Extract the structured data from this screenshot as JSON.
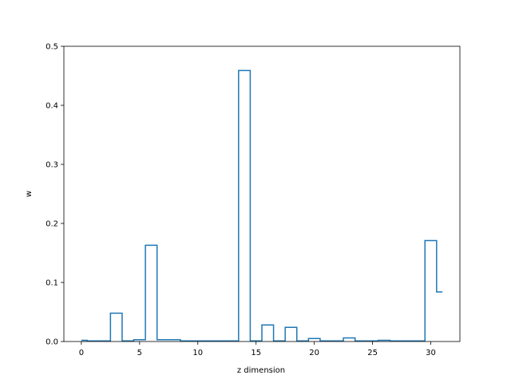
{
  "chart_data": {
    "type": "step",
    "title": "",
    "xlabel": "z dimension",
    "ylabel": "w",
    "xlim": [
      -1.5,
      32.5
    ],
    "ylim": [
      0,
      0.5
    ],
    "xticks": [
      0,
      5,
      10,
      15,
      20,
      25,
      30
    ],
    "yticks": [
      0.0,
      0.1,
      0.2,
      0.3,
      0.4,
      0.5
    ],
    "xtick_labels": [
      "0",
      "5",
      "10",
      "15",
      "20",
      "25",
      "30"
    ],
    "ytick_labels": [
      "0.0",
      "0.1",
      "0.2",
      "0.3",
      "0.4",
      "0.5"
    ],
    "step_where": "mid",
    "color": "#1f77b4",
    "grid": false,
    "series": [
      {
        "x": [
          0,
          1,
          2,
          3,
          4,
          5,
          6,
          7,
          8,
          9,
          10,
          11,
          12,
          13,
          14,
          15,
          16,
          17,
          18,
          19,
          20,
          21,
          22,
          23,
          24,
          25,
          26,
          27,
          28,
          29,
          30,
          31
        ],
        "values": [
          0.002,
          0.001,
          0.001,
          0.048,
          0.001,
          0.003,
          0.163,
          0.003,
          0.003,
          0.001,
          0.001,
          0.001,
          0.001,
          0.001,
          0.459,
          0.001,
          0.028,
          0.001,
          0.024,
          0.001,
          0.005,
          0.001,
          0.001,
          0.006,
          0.001,
          0.001,
          0.002,
          0.001,
          0.001,
          0.001,
          0.171,
          0.084
        ]
      }
    ]
  }
}
